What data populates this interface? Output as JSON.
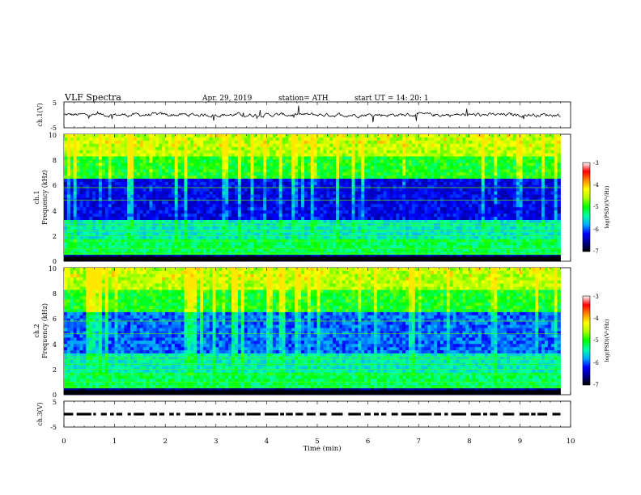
{
  "header": {
    "title": "VLF  Spectra",
    "date": "Apr. 29, 2019",
    "station": "station= ATH",
    "start": "start  UT  =    14: 20: 1"
  },
  "chart_data": [
    {
      "type": "line",
      "panel": "ch1",
      "ylabel": "ch.1(V)",
      "ylim": [
        -5,
        5
      ],
      "yticks": [
        "5",
        "-5"
      ],
      "xlim": [
        0,
        9.8
      ],
      "baseline": 0,
      "noise_amplitude": 1
    },
    {
      "type": "heatmap",
      "panel": "ch1-spectrogram",
      "ylabel_top": "ch.1",
      "ylabel": "Frequency  (kHz)",
      "ylim": [
        0,
        10
      ],
      "yticks": [
        "0",
        "2",
        "4",
        "6",
        "8",
        "10"
      ],
      "xlim": [
        0,
        9.8
      ],
      "colorbar": {
        "label": "log(PSD)(V²/Hz)",
        "range": [
          -7,
          -3
        ],
        "ticks": [
          "-3",
          "-4",
          "-5",
          "-6",
          "-7"
        ]
      }
    },
    {
      "type": "heatmap",
      "panel": "ch2-spectrogram",
      "ylabel_top": "ch.2",
      "ylabel": "Frequency  (kHz)",
      "ylim": [
        0,
        10
      ],
      "yticks": [
        "0",
        "2",
        "4",
        "6",
        "8",
        "10"
      ],
      "xlim": [
        0,
        9.8
      ],
      "colorbar": {
        "label": "log(PSD)(V²/Hz)",
        "range": [
          -7,
          -3
        ],
        "ticks": [
          "-3",
          "-4",
          "-5",
          "-6",
          "-7"
        ]
      }
    },
    {
      "type": "line",
      "panel": "ch3",
      "ylabel": "ch.3(V)",
      "ylim": [
        -5,
        5
      ],
      "yticks": [
        "5",
        "",
        "-5"
      ],
      "xlim": [
        0,
        9.8
      ],
      "baseline": 0,
      "pattern": "dashed"
    }
  ],
  "xaxis": {
    "label": "Time  (min)",
    "range": [
      0,
      10
    ],
    "ticks": [
      "0",
      "1",
      "2",
      "3",
      "4",
      "5",
      "6",
      "7",
      "8",
      "9",
      "10"
    ]
  },
  "colors": {
    "scale": [
      "#000000",
      "#00008b",
      "#0000ff",
      "#00aaff",
      "#00ffaa",
      "#00ff00",
      "#aaff00",
      "#ffff00",
      "#ff8800",
      "#ff0000",
      "#ffffff"
    ]
  }
}
